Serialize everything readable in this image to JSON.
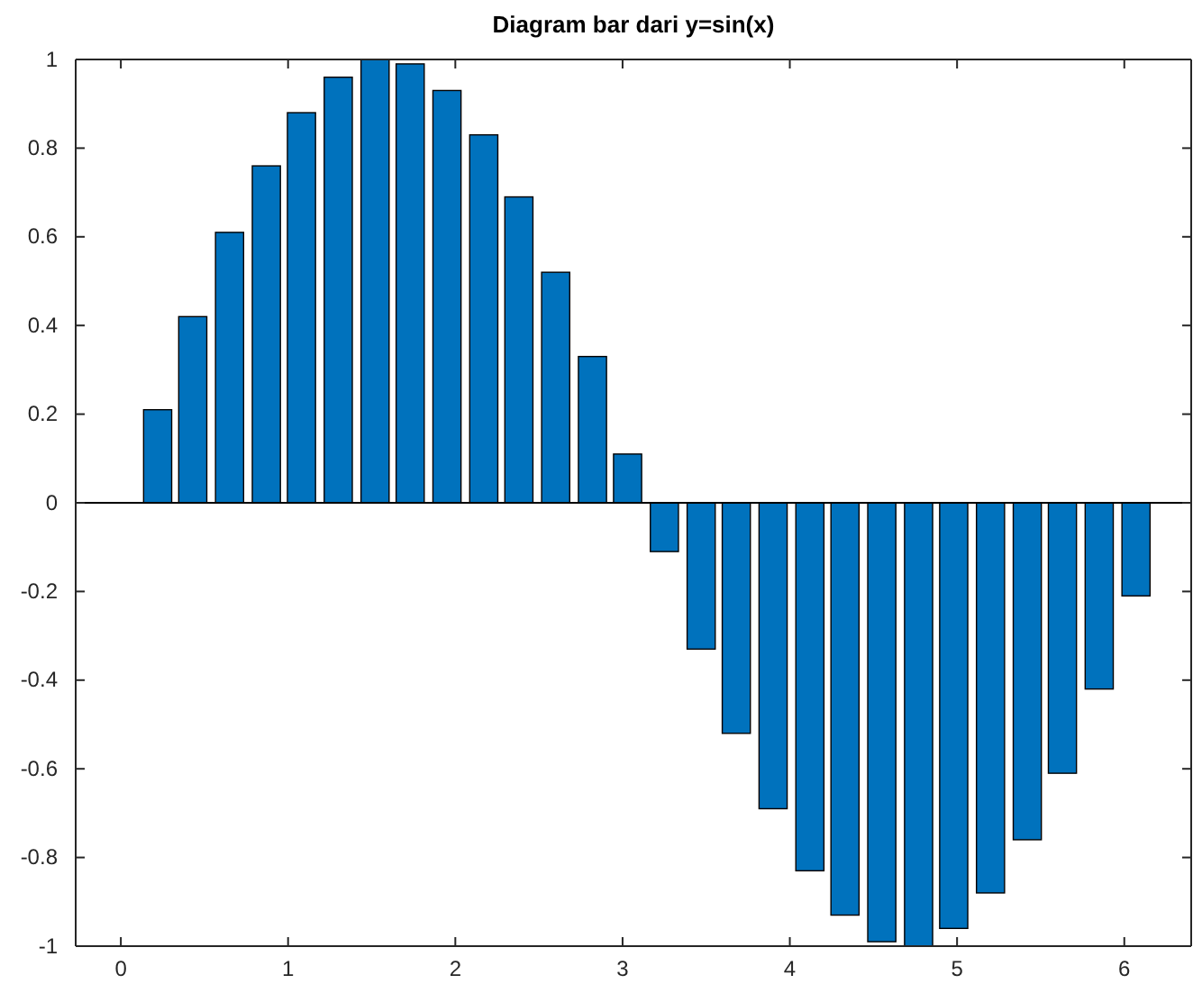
{
  "chart_data": {
    "type": "bar",
    "title": "Diagram bar dari y=sin(x)",
    "x": [
      0,
      0.22,
      0.43,
      0.65,
      0.87,
      1.08,
      1.3,
      1.52,
      1.73,
      1.95,
      2.17,
      2.38,
      2.6,
      2.82,
      3.03,
      3.25,
      3.47,
      3.68,
      3.9,
      4.12,
      4.33,
      4.55,
      4.77,
      4.98,
      5.2,
      5.42,
      5.63,
      5.85,
      6.07,
      6.28
    ],
    "values": [
      0,
      0.21,
      0.42,
      0.61,
      0.76,
      0.88,
      0.96,
      1.0,
      0.99,
      0.93,
      0.83,
      0.69,
      0.52,
      0.33,
      0.11,
      -0.11,
      -0.33,
      -0.52,
      -0.69,
      -0.83,
      -0.93,
      -0.99,
      -1.0,
      -0.96,
      -0.88,
      -0.76,
      -0.61,
      -0.42,
      -0.21,
      0
    ],
    "color": "#0072bd",
    "xlim": [
      -0.27,
      6.4
    ],
    "xticks": [
      0,
      1,
      2,
      3,
      4,
      5,
      6
    ],
    "ylim": [
      -1,
      1
    ],
    "yticks": [
      -1,
      -0.8,
      -0.6,
      -0.4,
      -0.2,
      0,
      0.2,
      0.4,
      0.6,
      0.8,
      1
    ]
  }
}
